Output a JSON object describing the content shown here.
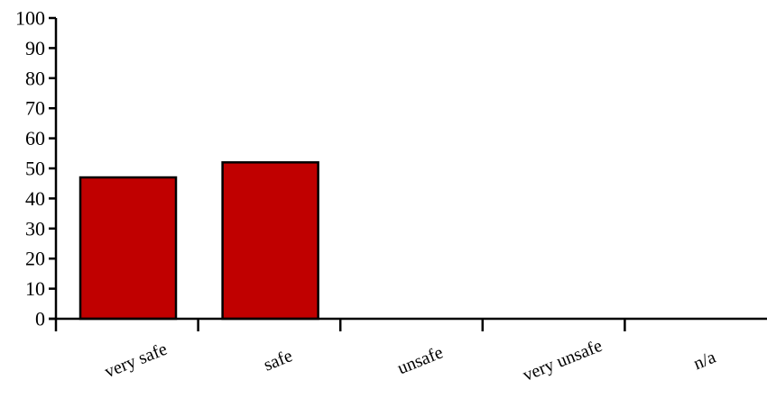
{
  "chart_data": {
    "type": "bar",
    "title": "",
    "xlabel": "",
    "ylabel": "",
    "categories": [
      "very safe",
      "safe",
      "unsafe",
      "very unsafe",
      "n/a"
    ],
    "values": [
      47,
      52,
      0,
      0,
      0
    ],
    "ylim": [
      0,
      100
    ],
    "yticks": [
      0,
      10,
      20,
      30,
      40,
      50,
      60,
      70,
      80,
      90,
      100
    ],
    "grid": false,
    "legend": "none",
    "colors": {
      "bar": "#c00000",
      "bar_edge": "#000000",
      "axis": "#000000"
    }
  }
}
